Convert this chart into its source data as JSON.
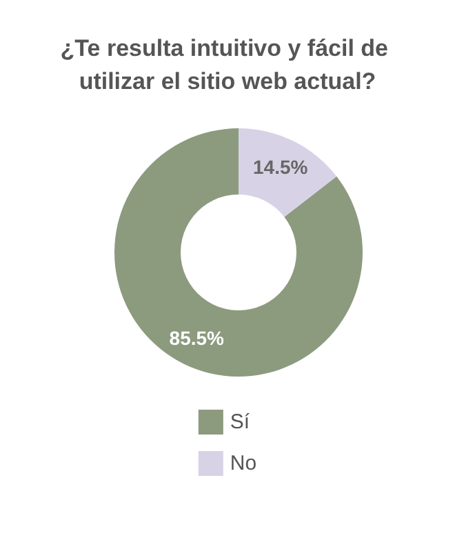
{
  "chart_data": {
    "type": "donut",
    "title": "¿Te resulta intuitivo y fácil de utilizar el sitio web actual?",
    "categories": [
      "Sí",
      "No"
    ],
    "values": [
      85.5,
      14.5
    ],
    "colors": [
      "#8c9a7e",
      "#d8d2e6"
    ],
    "value_labels": [
      "85.5%",
      "14.5%"
    ],
    "legend": "bottom"
  }
}
